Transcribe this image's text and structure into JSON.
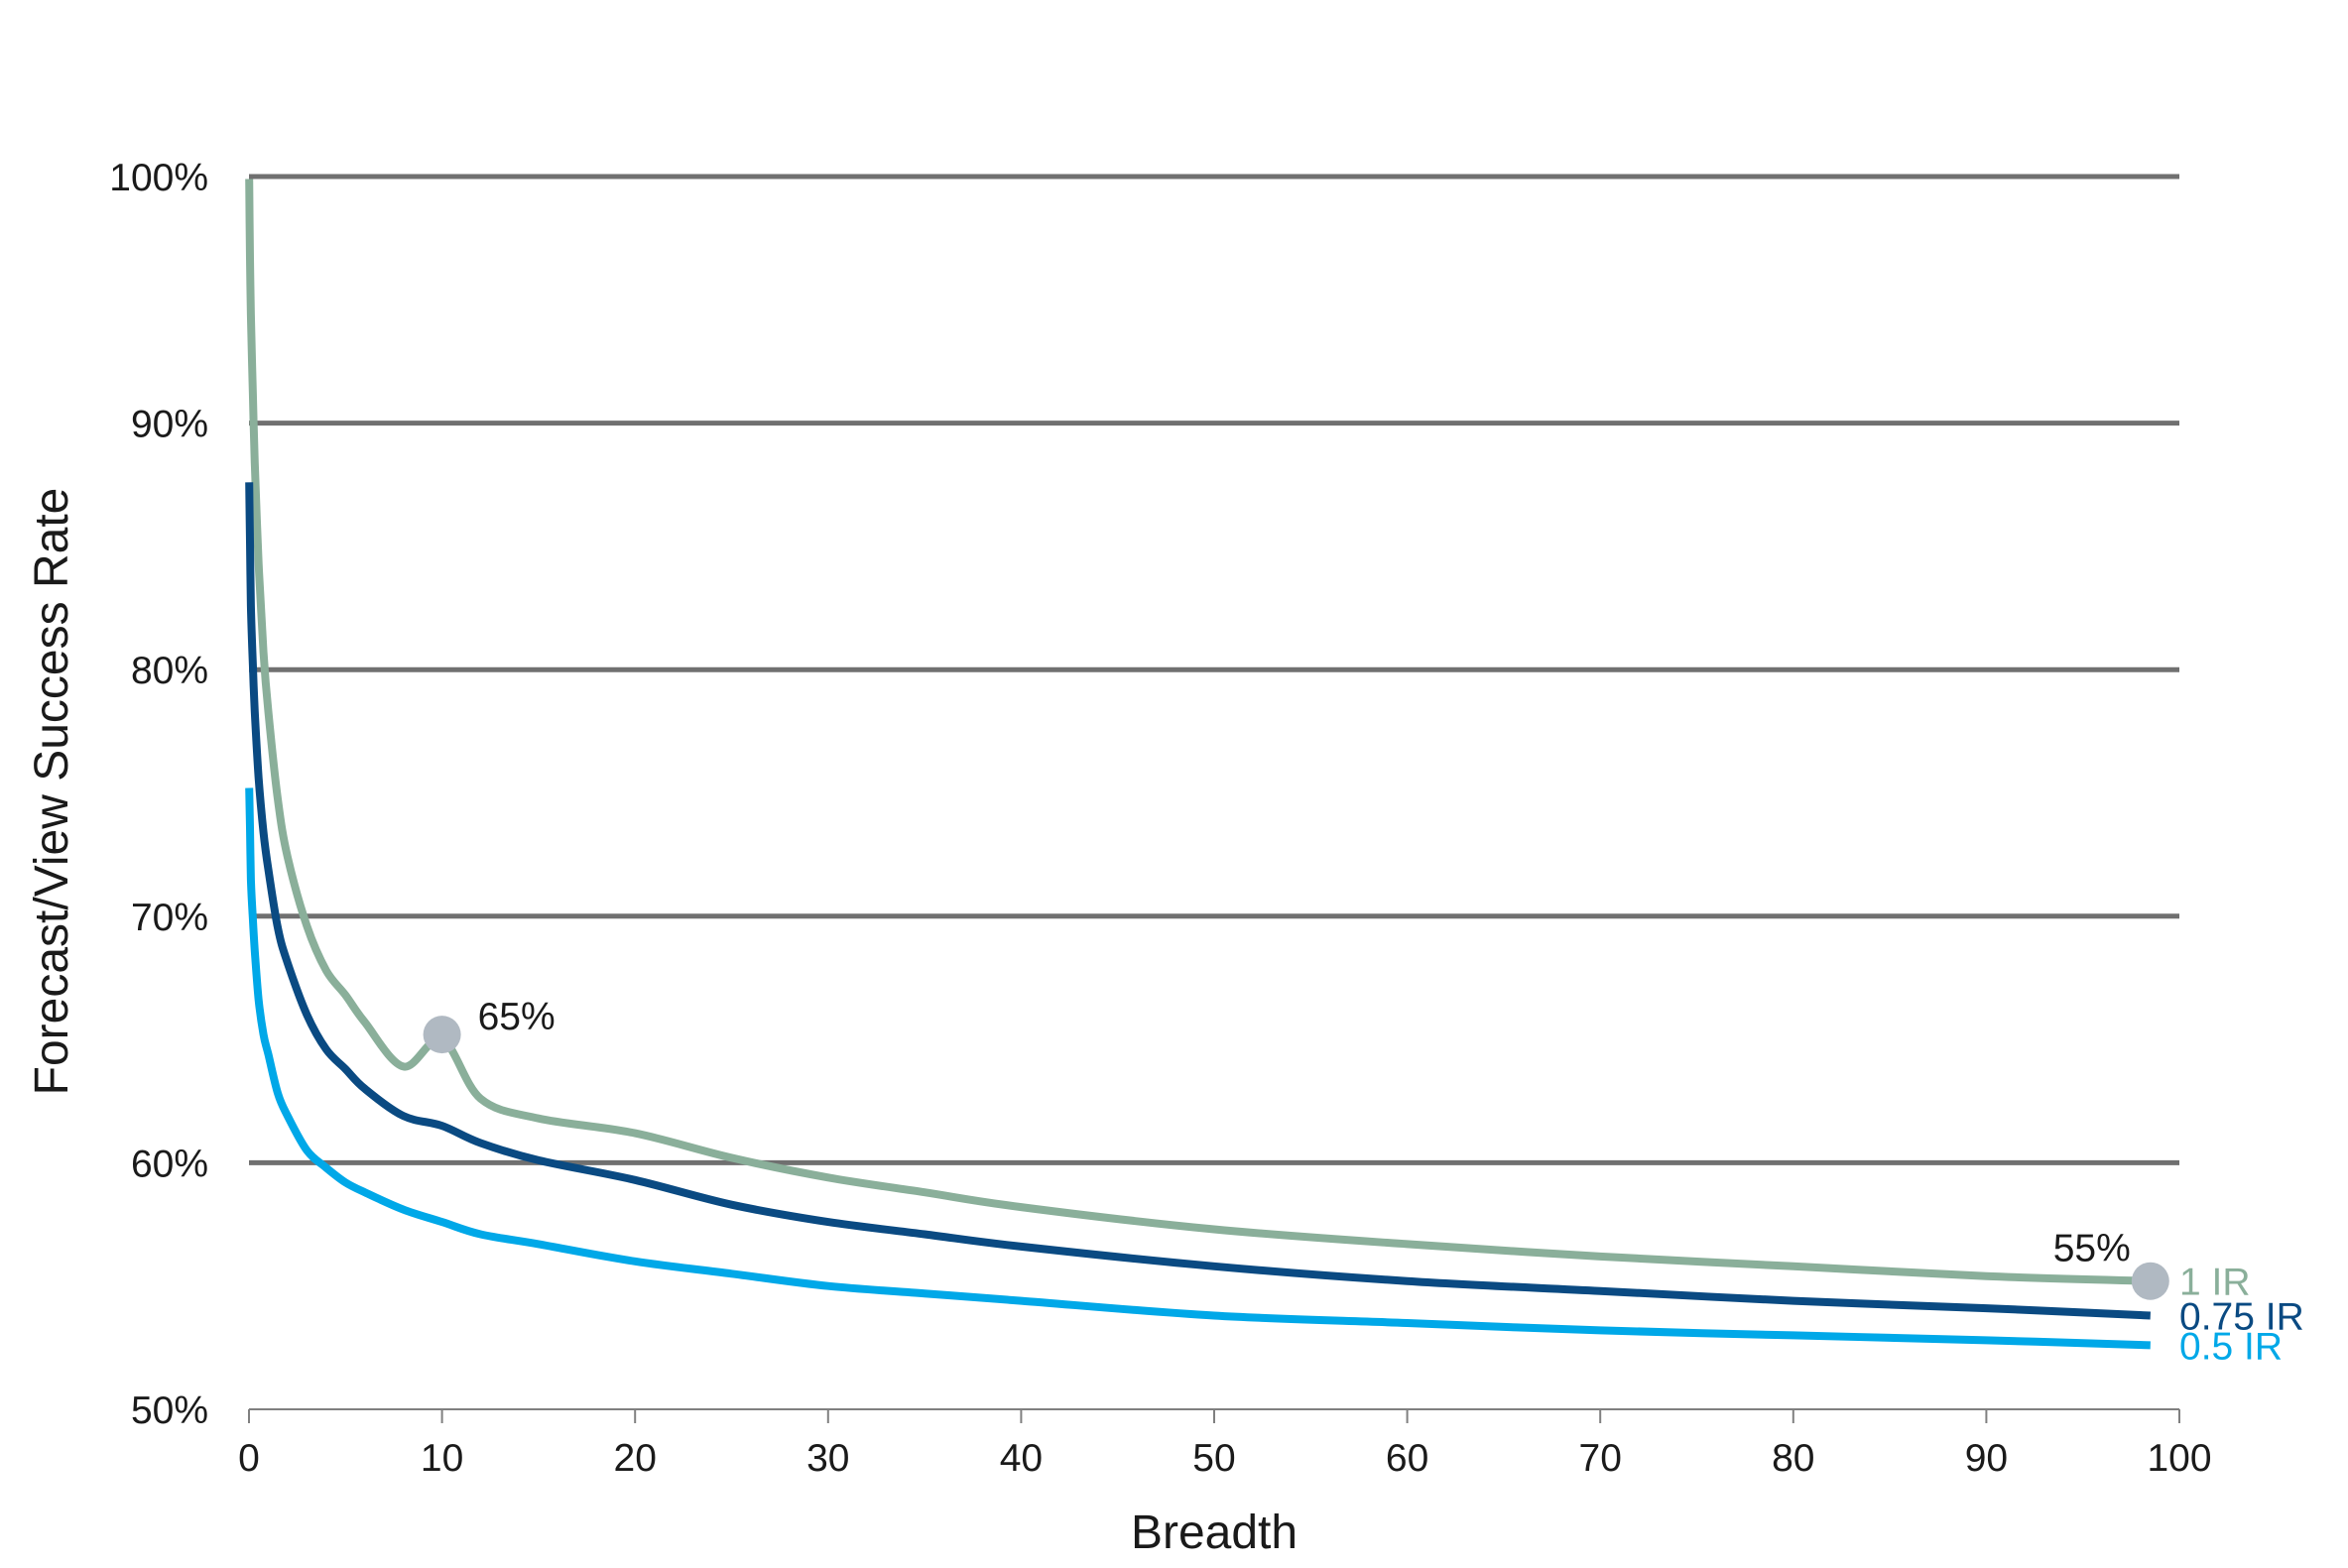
{
  "chart_data": {
    "type": "line",
    "title": "",
    "xlabel": "Breadth",
    "ylabel": "Forecast/View Success Rate",
    "xlim": [
      0,
      100
    ],
    "ylim": [
      50,
      100
    ],
    "x_ticks": [
      0,
      10,
      20,
      30,
      40,
      50,
      60,
      70,
      80,
      90,
      100
    ],
    "x_tick_labels": [
      "0",
      "10",
      "20",
      "30",
      "40",
      "50",
      "60",
      "70",
      "80",
      "90",
      "100"
    ],
    "y_ticks": [
      50,
      60,
      70,
      80,
      90,
      100
    ],
    "y_tick_labels": [
      "50%",
      "60%",
      "70%",
      "80%",
      "90%",
      "100%"
    ],
    "grid": "horizontal",
    "x": [
      0.01,
      0.05,
      0.1,
      0.2,
      0.3,
      0.5,
      0.75,
      1,
      1.5,
      2,
      3,
      4,
      5,
      6,
      8,
      10,
      12,
      15,
      20,
      25,
      30,
      35,
      40,
      50,
      60,
      70,
      80,
      90,
      98.5
    ],
    "series": [
      {
        "name": "1 IR",
        "label": "1 IR",
        "color": "#8aaf9a",
        "values": [
          99.9,
          96.7,
          94.4,
          91.2,
          88.4,
          84.3,
          80.7,
          78.3,
          74.7,
          72.4,
          69.6,
          67.8,
          66.8,
          65.7,
          63.9,
          65.0,
          62.6,
          61.8,
          61.2,
          60.2,
          59.4,
          58.8,
          58.2,
          57.3,
          56.7,
          56.2,
          55.8,
          55.4,
          55.2
        ]
      },
      {
        "name": "0.75 IR",
        "label": "0.75 IR",
        "color": "#0a4a82",
        "values": [
          87.6,
          85.2,
          82.6,
          80.2,
          78.3,
          75.6,
          73.4,
          71.9,
          69.5,
          68.1,
          66.0,
          64.6,
          63.8,
          63.0,
          61.9,
          61.5,
          60.8,
          60.1,
          59.3,
          58.3,
          57.6,
          57.1,
          56.6,
          55.8,
          55.2,
          54.8,
          54.4,
          54.1,
          53.8
        ]
      },
      {
        "name": "0.5 IR",
        "label": "0.5 IR",
        "color": "#00a8e8",
        "values": [
          75.2,
          73.6,
          71.5,
          69.9,
          68.6,
          66.6,
          65.2,
          64.4,
          62.8,
          61.9,
          60.5,
          59.8,
          59.2,
          58.8,
          58.1,
          57.6,
          57.1,
          56.7,
          56.0,
          55.5,
          55.0,
          54.7,
          54.4,
          53.8,
          53.5,
          53.2,
          53.0,
          52.8,
          52.6
        ]
      }
    ],
    "annotations": [
      {
        "text": "65%",
        "x": 10,
        "y": 65.2,
        "series": "1 IR"
      },
      {
        "text": "55%",
        "x": 98.5,
        "y": 55.2,
        "series": "1 IR"
      }
    ],
    "marker_color": "#b0b9c2",
    "grid_color": "#707070"
  }
}
